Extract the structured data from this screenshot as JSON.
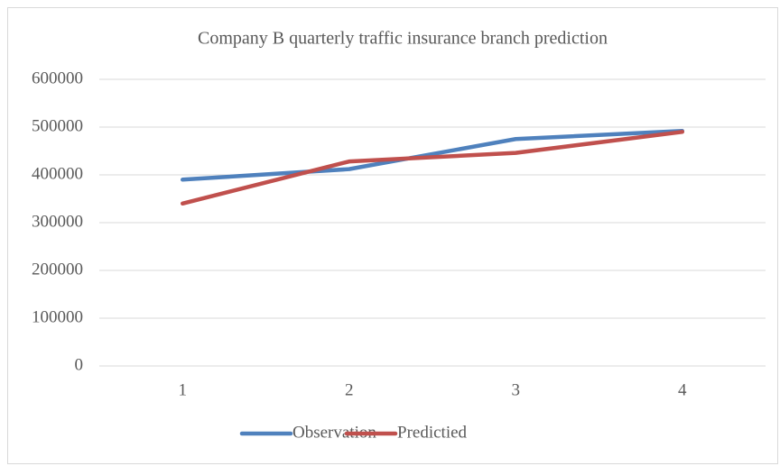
{
  "chart_data": {
    "type": "line",
    "title": "Company B quarterly traffic insurance branch prediction",
    "categories": [
      "1",
      "2",
      "3",
      "4"
    ],
    "series": [
      {
        "name": "Observation",
        "color": "#4f81bd",
        "values": [
          390000,
          412000,
          475000,
          492000
        ]
      },
      {
        "name": "Predictied",
        "color": "#c0504d",
        "values": [
          340000,
          428000,
          446000,
          490000
        ]
      }
    ],
    "ylim": [
      0,
      600000
    ],
    "yticks": [
      0,
      100000,
      200000,
      300000,
      400000,
      500000,
      600000
    ],
    "grid": true,
    "legend": "bottom"
  }
}
